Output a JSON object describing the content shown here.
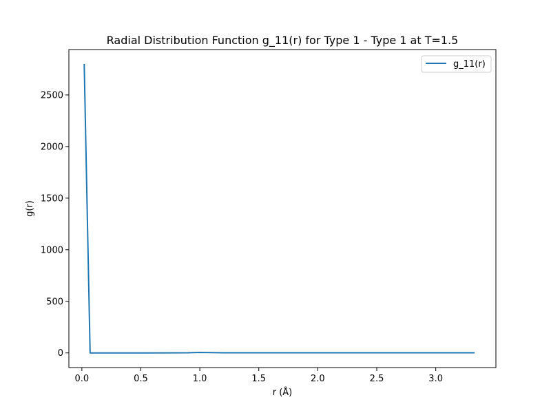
{
  "chart_data": {
    "type": "line",
    "title": "Radial Distribution Function g_11(r) for Type 1 - Type 1 at T=1.5",
    "xlabel": "r (Å)",
    "ylabel": "g(r)",
    "xlim": [
      -0.11,
      3.51
    ],
    "ylim": [
      -142,
      2940
    ],
    "x_ticks": [
      0.0,
      0.5,
      1.0,
      1.5,
      2.0,
      2.5,
      3.0
    ],
    "x_tick_labels": [
      "0.0",
      "0.5",
      "1.0",
      "1.5",
      "2.0",
      "2.5",
      "3.0"
    ],
    "y_ticks": [
      0,
      500,
      1000,
      1500,
      2000,
      2500
    ],
    "y_tick_labels": [
      "0",
      "500",
      "1000",
      "1500",
      "2000",
      "2500"
    ],
    "grid": false,
    "legend_position": "top-right",
    "series": [
      {
        "name": "g_11(r)",
        "color": "#1f77b4",
        "x": [
          0.02,
          0.07,
          0.2,
          0.5,
          0.9,
          1.0,
          1.05,
          1.2,
          1.5,
          2.0,
          2.5,
          3.0,
          3.33
        ],
        "y": [
          2800,
          0,
          0,
          0,
          1,
          5,
          4,
          1,
          1,
          1,
          1,
          1,
          1
        ]
      }
    ]
  }
}
